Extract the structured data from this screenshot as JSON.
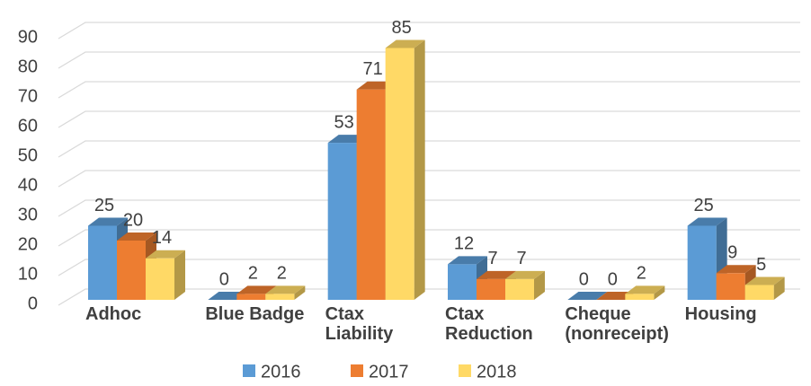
{
  "chart_data": {
    "type": "bar3d",
    "categories": [
      "Adhoc",
      "Blue Badge",
      "Ctax Liability",
      "Ctax Reduction",
      "Cheque (nonreceipt)",
      "Housing"
    ],
    "series": [
      {
        "name": "2016",
        "color": "#5b9bd5",
        "values": [
          25,
          0,
          53,
          12,
          0,
          25
        ]
      },
      {
        "name": "2017",
        "color": "#ed7d31",
        "values": [
          20,
          2,
          71,
          7,
          0,
          9
        ]
      },
      {
        "name": "2018",
        "color": "#ffd966",
        "values": [
          14,
          2,
          85,
          7,
          2,
          5
        ]
      }
    ],
    "ylim": [
      0,
      90
    ],
    "yticks": [
      0,
      10,
      20,
      30,
      40,
      50,
      60,
      70,
      80,
      90
    ],
    "grid": true,
    "legend": "bottom"
  }
}
